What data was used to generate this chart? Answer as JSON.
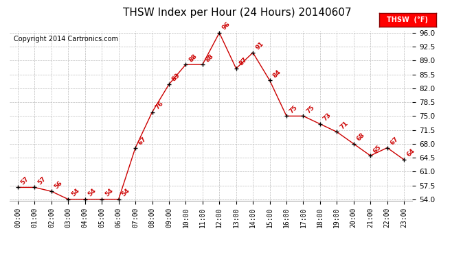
{
  "title": "THSW Index per Hour (24 Hours) 20140607",
  "copyright": "Copyright 2014 Cartronics.com",
  "legend_label": "THSW  (°F)",
  "hour_labels": [
    "00:00",
    "01:00",
    "02:00",
    "03:00",
    "04:00",
    "05:00",
    "06:00",
    "07:00",
    "08:00",
    "09:00",
    "10:00",
    "11:00",
    "12:00",
    "13:00",
    "14:00",
    "15:00",
    "16:00",
    "17:00",
    "18:00",
    "19:00",
    "20:00",
    "21:00",
    "22:00",
    "23:00"
  ],
  "x_vals": [
    0,
    1,
    2,
    3,
    4,
    5,
    6,
    7,
    8,
    9,
    10,
    11,
    12,
    13,
    14,
    15,
    16,
    17,
    18,
    19,
    20,
    21,
    22,
    23
  ],
  "y_vals": [
    57,
    57,
    56,
    54,
    54,
    54,
    54,
    67,
    76,
    83,
    88,
    88,
    96,
    87,
    91,
    84,
    75,
    75,
    73,
    71,
    68,
    65,
    67,
    64
  ],
  "ylim_min": 54.0,
  "ylim_max": 96.0,
  "yticks": [
    54.0,
    57.5,
    61.0,
    64.5,
    68.0,
    71.5,
    75.0,
    78.5,
    82.0,
    85.5,
    89.0,
    92.5,
    96.0
  ],
  "line_color": "#cc0000",
  "marker_color": "#000000",
  "bg_color": "#ffffff",
  "grid_color": "#bbbbbb",
  "title_fontsize": 11,
  "copyright_fontsize": 7,
  "annot_fontsize": 6.5,
  "tick_fontsize": 7,
  "ytick_fontsize": 7.5
}
